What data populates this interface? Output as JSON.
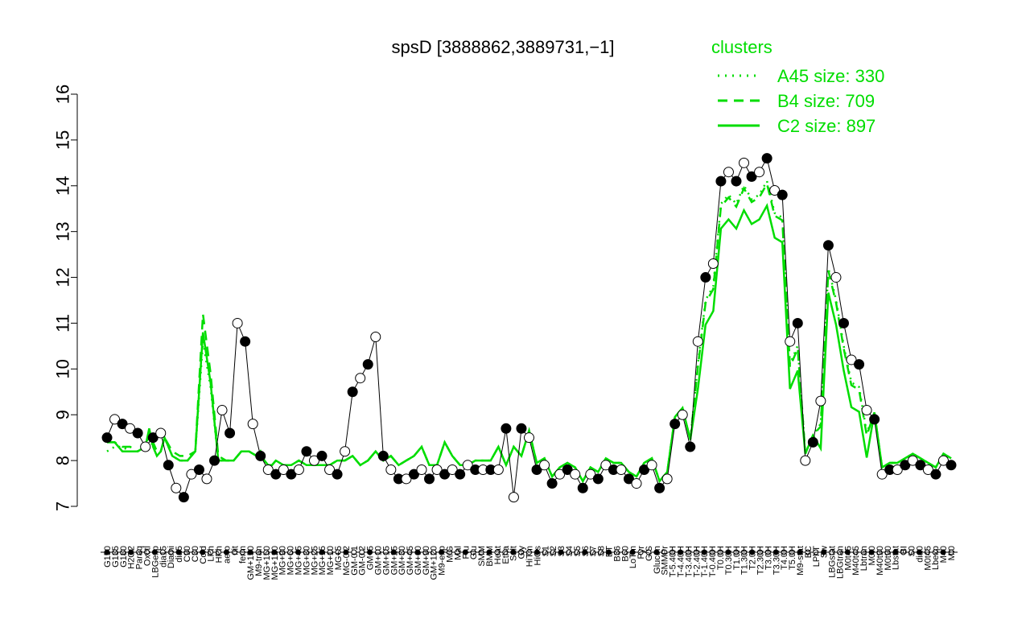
{
  "chart_data": {
    "type": "line",
    "title": "spsD [3888862,3889731,−1]",
    "xlabel": "",
    "ylabel": "",
    "ylim": [
      7,
      16
    ],
    "yticks": [
      7,
      8,
      9,
      10,
      11,
      12,
      13,
      14,
      15,
      16
    ],
    "grid": false,
    "legend": {
      "title": "clusters",
      "placement": "top-right",
      "entries": [
        "A45 size: 330",
        "B4 size: 709",
        "C2 size: 897"
      ]
    },
    "colors": {
      "clusters": "#00dd00",
      "points": "#000000"
    },
    "x_labels": [
      "G150",
      "G135",
      "G180",
      "H2O2",
      "Paraq",
      "Oxctl",
      "LBGexp",
      "dia15",
      "Diami",
      "dia5",
      "C90",
      "C30",
      "Cold",
      "LPh",
      "HPh",
      "aero",
      "nit",
      "ferm",
      "GM+150",
      "M9-tran",
      "MG+150",
      "MG+120",
      "MG+90",
      "MG+60",
      "MG+45",
      "MG+30",
      "MG+25",
      "MG+15",
      "MG+10",
      "MG+5",
      "MG-0.2",
      "GM-0.1",
      "GM-0.2",
      "GM+5",
      "GM+10",
      "GM+15",
      "GM+25",
      "GM+30",
      "GM+45",
      "GM+60",
      "GM+90",
      "GM+120",
      "M9-exp",
      "M/G",
      "Mal",
      "Fru",
      "Glu",
      "SMM",
      "BMM",
      "Heat",
      "Etha",
      "Salt",
      "Gly",
      "HiTm",
      "HiOs",
      "S1",
      "S2",
      "S3",
      "S4",
      "S5",
      "S6",
      "S7",
      "S8",
      "BT",
      "B36",
      "B60",
      "LoTm",
      "Pyr",
      "G/S",
      "Glucon",
      "SMMPr",
      "T-5.40H",
      "T-4.40H",
      "T-3.40H",
      "T-2.40H",
      "T-1.40H",
      "T-0.40H",
      "T0.0H",
      "T0.30H",
      "T1.0H",
      "T1.30H",
      "T2.0H",
      "T2.30H",
      "T3.0H",
      "T3.30H",
      "T4.0H",
      "T5.0H",
      "M9-stat",
      "BC",
      "LPhT",
      "Sw",
      "LBGstat",
      "LBGtran",
      "M0t45",
      "M40t45",
      "Lbtran",
      "M0t0",
      "M40t90",
      "M0t90",
      "Lbstat",
      "BI",
      "S0",
      "dia0",
      "M0t45",
      "Lbexp",
      "M40",
      "Mt0"
    ],
    "series": [
      {
        "name": "A45 size: 330",
        "style": "dotted",
        "x": [
          0,
          4,
          8,
          12,
          16,
          20,
          22,
          24,
          26,
          28,
          30,
          34,
          38,
          42,
          46,
          50,
          54,
          58,
          62,
          66,
          70,
          74,
          78,
          80,
          82,
          84,
          86,
          88,
          92,
          96,
          100,
          104,
          108,
          112,
          116,
          120,
          124,
          128,
          132,
          136,
          140,
          144,
          148,
          152,
          156,
          160,
          164,
          168,
          172,
          176,
          180,
          184,
          188,
          192,
          196,
          200,
          204,
          208,
          212,
          216
        ],
        "y": [
          8.2,
          8.3,
          8.3,
          8.2,
          8.2,
          8.3,
          8.5,
          8.3,
          8.2,
          8.2,
          8.5,
          8.1,
          8.0,
          8.0,
          8.2,
          10.6,
          9.6,
          8.0,
          8.0,
          8.0,
          8.2,
          8.2,
          8.1,
          8.2,
          8.0,
          7.9,
          7.9,
          8.0,
          7.9,
          7.9,
          8.0,
          7.9,
          7.9,
          7.9,
          7.9,
          8.0,
          8.0,
          8.1,
          7.9,
          8.0,
          8.2,
          8.0,
          8.1,
          7.9,
          8.0,
          8.1,
          8.3,
          7.9,
          7.9,
          8.4,
          8.1,
          7.9,
          7.9,
          8.0,
          8.0,
          8.0,
          8.3,
          7.9,
          8.3,
          8.1
        ]
      },
      {
        "name": "B4 size: 709",
        "style": "dashed",
        "x": [
          0,
          4,
          8,
          12,
          16,
          20,
          22,
          24,
          26,
          28,
          30,
          34,
          38,
          42,
          46,
          50,
          54,
          58,
          62,
          66,
          70,
          74,
          78,
          80,
          82,
          84,
          86,
          88,
          92,
          96,
          100,
          104,
          108,
          112,
          116,
          120,
          124,
          128,
          132,
          136,
          140,
          144,
          148,
          152,
          156,
          160,
          164,
          168,
          172,
          176,
          180,
          184,
          188,
          192,
          196,
          200,
          204,
          208,
          212,
          216
        ],
        "y": [
          8.4,
          8.4,
          8.3,
          8.3,
          8.2,
          8.3,
          8.6,
          8.4,
          8.2,
          8.2,
          8.5,
          8.2,
          8.1,
          8.1,
          8.2,
          11.2,
          9.9,
          8.1,
          8.0,
          8.0,
          8.2,
          8.2,
          8.1,
          8.2,
          8.0,
          7.9,
          7.9,
          8.0,
          7.9,
          7.9,
          8.0,
          7.9,
          7.9,
          7.9,
          7.9,
          8.0,
          8.0,
          8.1,
          7.9,
          8.0,
          8.2,
          8.0,
          8.1,
          7.9,
          8.0,
          8.1,
          8.3,
          7.9,
          7.9,
          8.4,
          8.1,
          7.9,
          7.9,
          8.0,
          8.0,
          8.0,
          8.3,
          7.9,
          8.3,
          8.1
        ]
      },
      {
        "name": "C2 size: 897",
        "style": "solid",
        "x": [
          0,
          4,
          8,
          12,
          16,
          20,
          22,
          24,
          26,
          28,
          30,
          34,
          38,
          42,
          46,
          50,
          54,
          58,
          62,
          66,
          70,
          74,
          78,
          80,
          82,
          84,
          86,
          88,
          92,
          96,
          100,
          104,
          108,
          112,
          116,
          120,
          124,
          128,
          132,
          136,
          140,
          144,
          148,
          152,
          156,
          160,
          164,
          168,
          172,
          176,
          180,
          184,
          188,
          192,
          196,
          200,
          204,
          208,
          212,
          216
        ],
        "y": [
          8.4,
          8.4,
          8.2,
          8.2,
          8.2,
          8.3,
          8.7,
          8.3,
          8.1,
          8.2,
          8.5,
          8.1,
          8.0,
          8.0,
          8.2,
          10.8,
          9.7,
          8.0,
          8.0,
          8.0,
          8.2,
          8.2,
          8.1,
          8.2,
          8.0,
          7.9,
          7.9,
          8.0,
          7.9,
          7.9,
          8.0,
          7.9,
          7.9,
          7.9,
          7.9,
          8.0,
          8.0,
          8.1,
          7.9,
          8.0,
          8.2,
          8.0,
          8.1,
          7.9,
          8.0,
          8.1,
          8.3,
          7.9,
          7.9,
          8.4,
          8.1,
          7.9,
          7.9,
          8.0,
          8.0,
          8.0,
          8.3,
          7.9,
          8.3,
          8.1
        ]
      },
      {
        "name": "",
        "style": "points",
        "x": [
          0,
          4,
          8,
          12,
          16,
          20,
          24,
          28,
          32,
          36,
          40,
          44,
          48,
          52,
          56,
          60,
          64,
          68,
          72,
          76,
          80,
          84,
          88,
          92,
          96,
          100,
          104,
          108,
          112,
          116,
          120,
          124,
          128,
          132,
          136,
          140,
          144,
          148,
          152,
          156,
          160,
          164,
          168,
          172,
          176,
          180,
          184,
          188,
          192,
          196,
          200,
          204,
          208,
          212,
          216
        ],
        "y": [
          8.5,
          8.9,
          8.8,
          8.7,
          8.6,
          8.3,
          8.5,
          8.6,
          7.9,
          7.4,
          7.2,
          7.7,
          7.8,
          7.6,
          8.0,
          9.1,
          8.6,
          11.0,
          10.6,
          8.8,
          8.1,
          7.8,
          7.7,
          7.8,
          7.7,
          7.8,
          8.2,
          8.0,
          8.1,
          7.8,
          7.7,
          8.2,
          9.5,
          9.8,
          10.1,
          10.7,
          8.1,
          7.8,
          7.6,
          7.6,
          7.7,
          7.8,
          7.6,
          7.8,
          7.7,
          7.8,
          7.7,
          7.9,
          7.8,
          7.8,
          7.8,
          7.8,
          8.7,
          7.2,
          8.7
        ]
      }
    ],
    "note_points_continue": {
      "x": [
        220,
        224,
        228,
        232,
        236,
        240,
        244,
        248,
        252,
        256,
        260,
        264,
        268,
        272,
        276,
        280,
        284,
        288,
        292,
        296,
        300,
        304,
        308,
        312,
        316,
        320,
        324,
        328,
        332,
        336,
        340,
        344,
        348,
        352,
        356,
        360,
        364,
        368,
        372,
        376,
        380,
        384,
        388,
        392,
        396,
        400,
        404,
        408,
        412,
        416,
        420,
        424,
        428,
        432,
        436,
        440
      ],
      "y": [
        8.5,
        7.8,
        7.9,
        7.5,
        7.7,
        7.8,
        7.7,
        7.4,
        7.7,
        7.6,
        7.9,
        7.8,
        7.8,
        7.6,
        7.5,
        7.8,
        7.9,
        7.4,
        7.6,
        8.8,
        9.0,
        8.3,
        10.6,
        12.0,
        12.3,
        14.1,
        14.3,
        14.1,
        14.5,
        14.2,
        14.3,
        14.6,
        13.9,
        13.8,
        10.6,
        11.0,
        8.0,
        8.4,
        9.3,
        12.7,
        12.0,
        11.0,
        10.2,
        10.1,
        9.1,
        8.9,
        7.7,
        7.8,
        7.8,
        7.9,
        8.0,
        7.9,
        7.8,
        7.7,
        8.0,
        7.9
      ]
    }
  }
}
